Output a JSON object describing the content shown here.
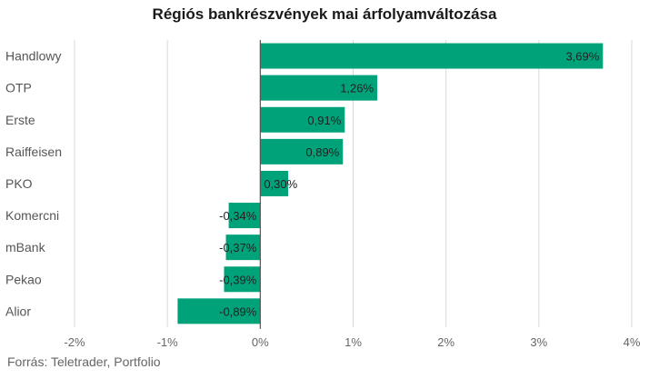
{
  "chart_data": {
    "type": "bar",
    "orientation": "horizontal",
    "title": "Régiós bankrészvények mai árfolyamváltozása",
    "categories": [
      "Handlowy",
      "OTP",
      "Erste",
      "Raiffeisen",
      "PKO",
      "Komercni",
      "mBank",
      "Pekao",
      "Alior"
    ],
    "values": [
      3.69,
      1.26,
      0.91,
      0.89,
      0.3,
      -0.34,
      -0.37,
      -0.39,
      -0.89
    ],
    "value_labels": [
      "3,69%",
      "1,26%",
      "0,91%",
      "0,89%",
      "0,30%",
      "-0,34%",
      "-0,37%",
      "-0,39%",
      "-0,89%"
    ],
    "xlim": [
      -2,
      4
    ],
    "xticks": [
      -2,
      -1,
      0,
      1,
      2,
      3,
      4
    ],
    "xtick_labels": [
      "-2%",
      "-1%",
      "0%",
      "1%",
      "2%",
      "3%",
      "4%"
    ],
    "grid": "vertical",
    "bar_color": "#00a27a",
    "gridline_color": "#d9d9d9",
    "zero_line_color": "#555555"
  },
  "source": "Forrás: Teletrader, Portfolio"
}
